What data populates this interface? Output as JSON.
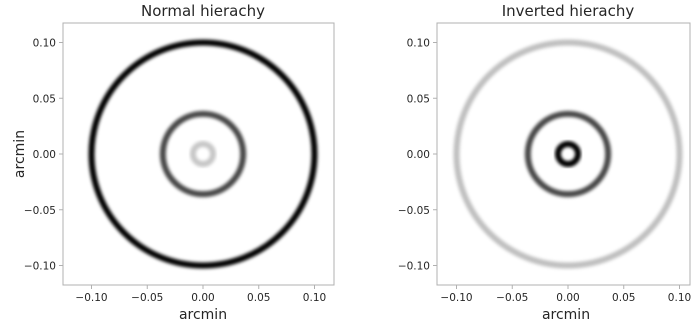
{
  "chart_data": [
    {
      "type": "heatmap",
      "title": "Normal hierachy",
      "xlabel": "arcmin",
      "ylabel": "arcmin",
      "xlim": [
        -0.12,
        0.12
      ],
      "ylim": [
        -0.12,
        0.12
      ],
      "xticks": [
        -0.1,
        -0.05,
        0.0,
        0.05,
        0.1
      ],
      "xtick_labels": [
        "−0.10",
        "−0.05",
        "0.00",
        "0.05",
        "0.10"
      ],
      "yticks": [
        0.1,
        0.05,
        0.0,
        -0.05,
        -0.1
      ],
      "ytick_labels": [
        "0.10",
        "0.05",
        "0.00",
        "−0.05",
        "−0.10"
      ],
      "grid": false,
      "colormap": "greys",
      "rings": [
        {
          "radius": 0.1,
          "intensity": 1.0
        },
        {
          "radius": 0.036,
          "intensity": 0.72
        },
        {
          "radius": 0.009,
          "intensity": 0.22
        }
      ]
    },
    {
      "type": "heatmap",
      "title": "Inverted hierachy",
      "xlabel": "arcmin",
      "ylabel": "",
      "xlim": [
        -0.12,
        0.12
      ],
      "ylim": [
        -0.12,
        0.12
      ],
      "xticks": [
        -0.1,
        -0.05,
        0.0,
        0.05,
        0.1
      ],
      "xtick_labels": [
        "−0.10",
        "−0.05",
        "0.00",
        "0.05",
        "0.10"
      ],
      "yticks": [
        0.1,
        0.05,
        0.0,
        -0.05,
        -0.1
      ],
      "ytick_labels": [
        "0.10",
        "0.05",
        "0.00",
        "−0.05",
        "−0.10"
      ],
      "grid": false,
      "colormap": "greys",
      "rings": [
        {
          "radius": 0.1,
          "intensity": 0.25
        },
        {
          "radius": 0.036,
          "intensity": 0.72
        },
        {
          "radius": 0.009,
          "intensity": 1.0
        }
      ]
    }
  ]
}
